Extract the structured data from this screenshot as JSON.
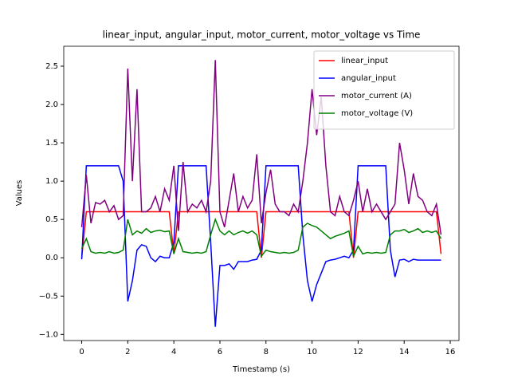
{
  "chart_data": {
    "type": "line",
    "title": "linear_input, angular_input, motor_current, motor_voltage vs Time",
    "x_label": "Timestamp (s)",
    "y_label": "Values",
    "x": [
      0,
      0.2,
      0.4,
      0.6,
      0.8,
      1.0,
      1.2,
      1.4,
      1.6,
      1.8,
      2.0,
      2.2,
      2.4,
      2.6,
      2.8,
      3.0,
      3.2,
      3.4,
      3.6,
      3.8,
      4.0,
      4.2,
      4.4,
      4.6,
      4.8,
      5.0,
      5.2,
      5.4,
      5.6,
      5.8,
      6.0,
      6.2,
      6.4,
      6.6,
      6.8,
      7.0,
      7.2,
      7.4,
      7.6,
      7.8,
      8.0,
      8.2,
      8.4,
      8.6,
      8.8,
      9.0,
      9.2,
      9.4,
      9.6,
      9.8,
      10.0,
      10.2,
      10.4,
      10.6,
      10.8,
      11.0,
      11.2,
      11.4,
      11.6,
      11.8,
      12.0,
      12.2,
      12.4,
      12.6,
      12.8,
      13.0,
      13.2,
      13.4,
      13.6,
      13.8,
      14.0,
      14.2,
      14.4,
      14.6,
      14.8,
      15.0,
      15.2,
      15.4,
      15.6
    ],
    "series": [
      {
        "name": "linear_input",
        "color": "#ff0000",
        "values": [
          0,
          0.6,
          0.6,
          0.6,
          0.6,
          0.6,
          0.6,
          0.6,
          0.6,
          0.6,
          0.6,
          0.6,
          0.6,
          0.6,
          0.6,
          0.6,
          0.6,
          0.6,
          0.6,
          0.6,
          0.05,
          0.6,
          0.6,
          0.6,
          0.6,
          0.6,
          0.6,
          0.6,
          0.6,
          0.6,
          0.6,
          0.6,
          0.6,
          0.6,
          0.6,
          0.6,
          0.6,
          0.6,
          0.6,
          0,
          0.6,
          0.6,
          0.6,
          0.6,
          0.6,
          0.6,
          0.6,
          0.6,
          0.6,
          0.6,
          0.6,
          0.6,
          0.6,
          0.6,
          0.6,
          0.6,
          0.6,
          0.6,
          0.6,
          0,
          0.6,
          0.6,
          0.6,
          0.6,
          0.6,
          0.6,
          0.6,
          0.6,
          0.6,
          0.6,
          0.6,
          0.6,
          0.6,
          0.6,
          0.6,
          0.6,
          0.6,
          0.6,
          0.05
        ]
      },
      {
        "name": "angular_input",
        "color": "#0000ff",
        "values": [
          -0.02,
          1.2,
          1.2,
          1.2,
          1.2,
          1.2,
          1.2,
          1.2,
          1.2,
          1.0,
          -0.57,
          -0.3,
          0.1,
          0.17,
          0.15,
          0,
          -0.05,
          0.02,
          0,
          0,
          0.2,
          1.2,
          1.2,
          1.2,
          1.2,
          1.2,
          1.2,
          1.2,
          0.2,
          -0.9,
          -0.1,
          -0.1,
          -0.08,
          -0.15,
          -0.05,
          -0.05,
          -0.05,
          -0.03,
          -0.02,
          0.1,
          1.2,
          1.2,
          1.2,
          1.2,
          1.2,
          1.2,
          1.2,
          1.2,
          0.3,
          -0.3,
          -0.57,
          -0.35,
          -0.2,
          -0.05,
          -0.03,
          -0.02,
          0,
          0.02,
          0,
          0.1,
          1.2,
          1.2,
          1.2,
          1.2,
          1.2,
          1.2,
          1.2,
          0.1,
          -0.25,
          -0.03,
          -0.02,
          -0.05,
          -0.02,
          -0.03,
          -0.03,
          -0.03,
          -0.03,
          -0.03,
          -0.03
        ]
      },
      {
        "name": "motor_current (A)",
        "color": "#800080",
        "values": [
          0.4,
          1.08,
          0.45,
          0.72,
          0.7,
          0.75,
          0.6,
          0.68,
          0.5,
          0.55,
          2.47,
          1.0,
          2.2,
          0.6,
          0.6,
          0.65,
          0.8,
          0.6,
          0.9,
          0.75,
          1.2,
          0.35,
          1.25,
          0.6,
          0.7,
          0.65,
          0.75,
          0.6,
          1.0,
          2.58,
          0.6,
          0.4,
          0.75,
          1.1,
          0.6,
          0.8,
          0.65,
          0.75,
          1.35,
          0.45,
          0.85,
          1.15,
          0.7,
          0.6,
          0.6,
          0.55,
          0.7,
          0.6,
          1.0,
          1.5,
          2.2,
          1.6,
          2.1,
          1.2,
          0.6,
          0.55,
          0.8,
          0.6,
          0.55,
          0.75,
          1.0,
          0.6,
          0.9,
          0.6,
          0.7,
          0.6,
          0.5,
          0.6,
          0.7,
          1.5,
          1.15,
          0.7,
          1.1,
          0.8,
          0.75,
          0.6,
          0.55,
          0.7,
          0.3
        ]
      },
      {
        "name": "motor_voltage (V)",
        "color": "#008000",
        "values": [
          0.12,
          0.25,
          0.08,
          0.06,
          0.07,
          0.06,
          0.08,
          0.06,
          0.07,
          0.1,
          0.5,
          0.3,
          0.35,
          0.32,
          0.38,
          0.33,
          0.35,
          0.36,
          0.34,
          0.35,
          0.05,
          0.25,
          0.08,
          0.07,
          0.06,
          0.07,
          0.06,
          0.08,
          0.3,
          0.5,
          0.35,
          0.3,
          0.35,
          0.3,
          0.33,
          0.35,
          0.32,
          0.35,
          0.3,
          0.02,
          0.1,
          0.08,
          0.07,
          0.06,
          0.07,
          0.06,
          0.07,
          0.1,
          0.4,
          0.45,
          0.42,
          0.4,
          0.35,
          0.3,
          0.25,
          0.28,
          0.3,
          0.32,
          0.35,
          0.02,
          0.15,
          0.05,
          0.07,
          0.06,
          0.07,
          0.06,
          0.07,
          0.3,
          0.35,
          0.35,
          0.37,
          0.33,
          0.35,
          0.38,
          0.33,
          0.35,
          0.33,
          0.35,
          0.25
        ]
      }
    ],
    "xlim": [
      -0.78,
      16.38
    ],
    "ylim": [
      -1.08,
      2.76
    ],
    "xticks": [
      0,
      2,
      4,
      6,
      8,
      10,
      12,
      14,
      16
    ],
    "yticks": [
      {
        "value": -1.0,
        "label": "−1.0"
      },
      {
        "value": -0.5,
        "label": "−0.5"
      },
      {
        "value": 0,
        "label": "0.0"
      },
      {
        "value": 0.5,
        "label": "0.5"
      },
      {
        "value": 1.0,
        "label": "1.0"
      },
      {
        "value": 1.5,
        "label": "1.5"
      },
      {
        "value": 2.0,
        "label": "2.0"
      },
      {
        "value": 2.5,
        "label": "2.5"
      }
    ],
    "legend": "upper right"
  }
}
